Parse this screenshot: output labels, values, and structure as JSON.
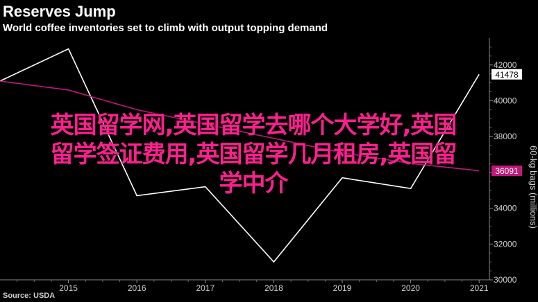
{
  "header": {
    "title": "Reserves Jump",
    "subtitle": "World coffee inventories set to climb with output topping demand"
  },
  "footer": {
    "source": "Source: USDA"
  },
  "overlay": {
    "lines": [
      "英国留学网,英国留学去哪个大学好,英国",
      "留学签证费用,英国留学几月租房,英国留",
      "学中介"
    ]
  },
  "chart_data": {
    "type": "line",
    "x": [
      2014,
      2015,
      2016,
      2017,
      2018,
      2019,
      2020,
      2021
    ],
    "x_tick_labels": [
      "2015",
      "2016",
      "2017",
      "2018",
      "2019",
      "2020",
      "2021"
    ],
    "x_ticks": [
      2015,
      2016,
      2017,
      2018,
      2019,
      2020,
      2021
    ],
    "xlim": [
      2014,
      2021.15
    ],
    "ylabel": "60-kg bags (millions)",
    "ylim": [
      30000,
      43500
    ],
    "y_ticks": [
      30000,
      32000,
      34000,
      36000,
      38000,
      40000,
      42000
    ],
    "y_tick_labels": [
      "30000",
      "32000",
      "34000",
      "36000",
      "38000",
      "40000",
      "42000"
    ],
    "grid": false,
    "series": [
      {
        "values": [
          41100,
          42900,
          34700,
          35200,
          31000,
          35700,
          35100,
          41478
        ],
        "last_label": "41478",
        "color": "#ffffff"
      },
      {
        "values": [
          41100,
          40600,
          39500,
          38700,
          37900,
          37100,
          36500,
          36091
        ],
        "last_label": "36091",
        "color": "#c2187a"
      }
    ]
  }
}
